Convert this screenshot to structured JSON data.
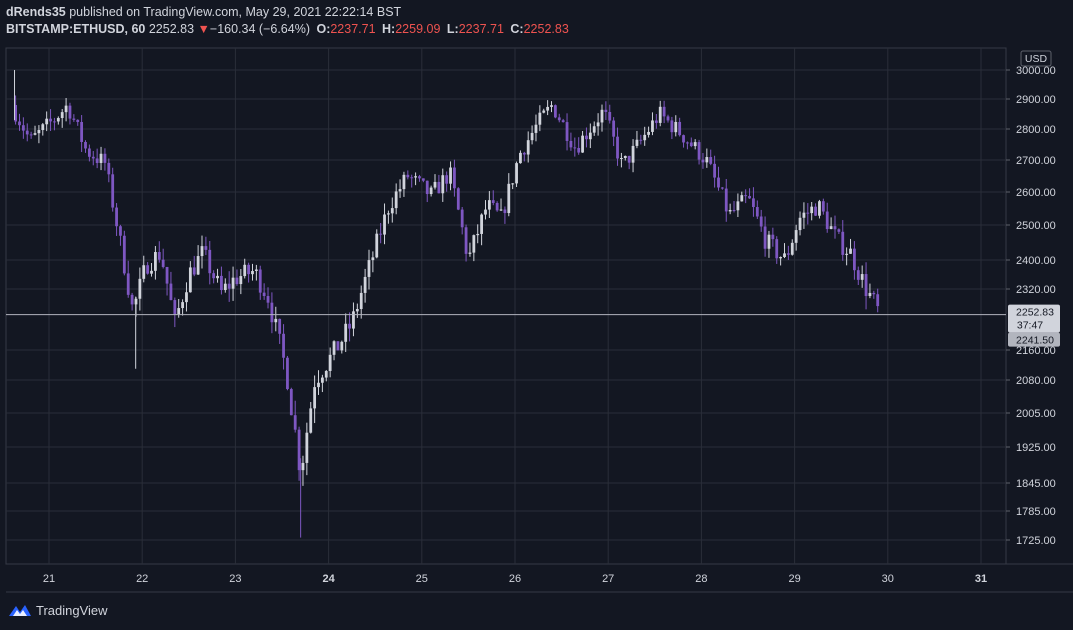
{
  "header": {
    "author": "dRends35",
    "published_text": "published on TradingView.com, May 29, 2021 22:22:14 BST",
    "symbol": "BITSTAMP:ETHUSD, 60",
    "last": "2252.83",
    "change_arrow": "▼",
    "change": "−160.34 (−6.64%)",
    "o_label": "O:",
    "o_value": "2237.71",
    "h_label": "H:",
    "h_value": "2259.09",
    "l_label": "L:",
    "l_value": "2237.71",
    "c_label": "C:",
    "c_value": "2252.83"
  },
  "footer": {
    "brand": "TradingView",
    "logo_icon": "tradingview-logo-icon"
  },
  "colors": {
    "background": "#131722",
    "grid": "#2a2e39",
    "up": "#d1d4dc",
    "down": "#7e57c2",
    "price_line": "#b2b5be",
    "change_red": "#ef5350"
  },
  "chart_data": {
    "type": "candlestick",
    "currency": "USD",
    "x_ticks": [
      {
        "label": "21",
        "day": 21,
        "bold": false
      },
      {
        "label": "22",
        "day": 22,
        "bold": false
      },
      {
        "label": "23",
        "day": 23,
        "bold": false
      },
      {
        "label": "24",
        "day": 24,
        "bold": true
      },
      {
        "label": "25",
        "day": 25,
        "bold": false
      },
      {
        "label": "26",
        "day": 26,
        "bold": false
      },
      {
        "label": "27",
        "day": 27,
        "bold": false
      },
      {
        "label": "28",
        "day": 28,
        "bold": false
      },
      {
        "label": "29",
        "day": 29,
        "bold": false
      },
      {
        "label": "30",
        "day": 30,
        "bold": false
      },
      {
        "label": "31",
        "day": 31,
        "bold": true
      }
    ],
    "y_ticks": [
      {
        "label": "3000.00",
        "value": 3000
      },
      {
        "label": "2900.00",
        "value": 2900
      },
      {
        "label": "2800.00",
        "value": 2800
      },
      {
        "label": "2700.00",
        "value": 2700
      },
      {
        "label": "2600.00",
        "value": 2600
      },
      {
        "label": "2500.00",
        "value": 2500
      },
      {
        "label": "2400.00",
        "value": 2400
      },
      {
        "label": "2320.00",
        "value": 2320
      },
      {
        "label": "2160.00",
        "value": 2160
      },
      {
        "label": "2080.00",
        "value": 2080
      },
      {
        "label": "2005.00",
        "value": 2005
      },
      {
        "label": "1925.00",
        "value": 1925
      },
      {
        "label": "1845.00",
        "value": 1845
      },
      {
        "label": "1785.00",
        "value": 1785
      },
      {
        "label": "1725.00",
        "value": 1725
      }
    ],
    "last_price": {
      "value": 2252.83,
      "label": "2252.83",
      "countdown": "37:47"
    },
    "secondary_price": {
      "value": 2241.5,
      "label": "2241.50"
    },
    "x_range_days": [
      20.6,
      31.28
    ],
    "y_range": [
      1680,
      3010
    ],
    "anchor_points": [
      {
        "day": 20.6,
        "price": 2880
      },
      {
        "day": 20.8,
        "price": 2760
      },
      {
        "day": 21.05,
        "price": 2830
      },
      {
        "day": 21.2,
        "price": 2880
      },
      {
        "day": 21.4,
        "price": 2730
      },
      {
        "day": 21.6,
        "price": 2690
      },
      {
        "day": 21.75,
        "price": 2470
      },
      {
        "day": 21.9,
        "price": 2260
      },
      {
        "day": 22.05,
        "price": 2390
      },
      {
        "day": 22.2,
        "price": 2420
      },
      {
        "day": 22.35,
        "price": 2230
      },
      {
        "day": 22.5,
        "price": 2360
      },
      {
        "day": 22.65,
        "price": 2420
      },
      {
        "day": 22.85,
        "price": 2310
      },
      {
        "day": 23.0,
        "price": 2350
      },
      {
        "day": 23.2,
        "price": 2370
      },
      {
        "day": 23.35,
        "price": 2300
      },
      {
        "day": 23.55,
        "price": 2100
      },
      {
        "day": 23.7,
        "price": 1870
      },
      {
        "day": 23.85,
        "price": 2080
      },
      {
        "day": 24.05,
        "price": 2150
      },
      {
        "day": 24.25,
        "price": 2230
      },
      {
        "day": 24.45,
        "price": 2390
      },
      {
        "day": 24.65,
        "price": 2560
      },
      {
        "day": 24.85,
        "price": 2650
      },
      {
        "day": 25.1,
        "price": 2590
      },
      {
        "day": 25.3,
        "price": 2660
      },
      {
        "day": 25.5,
        "price": 2400
      },
      {
        "day": 25.7,
        "price": 2560
      },
      {
        "day": 25.85,
        "price": 2520
      },
      {
        "day": 26.05,
        "price": 2720
      },
      {
        "day": 26.25,
        "price": 2820
      },
      {
        "day": 26.4,
        "price": 2880
      },
      {
        "day": 26.65,
        "price": 2740
      },
      {
        "day": 26.95,
        "price": 2860
      },
      {
        "day": 27.15,
        "price": 2680
      },
      {
        "day": 27.35,
        "price": 2760
      },
      {
        "day": 27.55,
        "price": 2850
      },
      {
        "day": 27.8,
        "price": 2780
      },
      {
        "day": 28.05,
        "price": 2700
      },
      {
        "day": 28.3,
        "price": 2530
      },
      {
        "day": 28.5,
        "price": 2580
      },
      {
        "day": 28.7,
        "price": 2450
      },
      {
        "day": 28.9,
        "price": 2400
      },
      {
        "day": 29.05,
        "price": 2520
      },
      {
        "day": 29.25,
        "price": 2560
      },
      {
        "day": 29.45,
        "price": 2460
      },
      {
        "day": 29.6,
        "price": 2420
      },
      {
        "day": 29.75,
        "price": 2330
      },
      {
        "day": 29.92,
        "price": 2250
      }
    ]
  }
}
